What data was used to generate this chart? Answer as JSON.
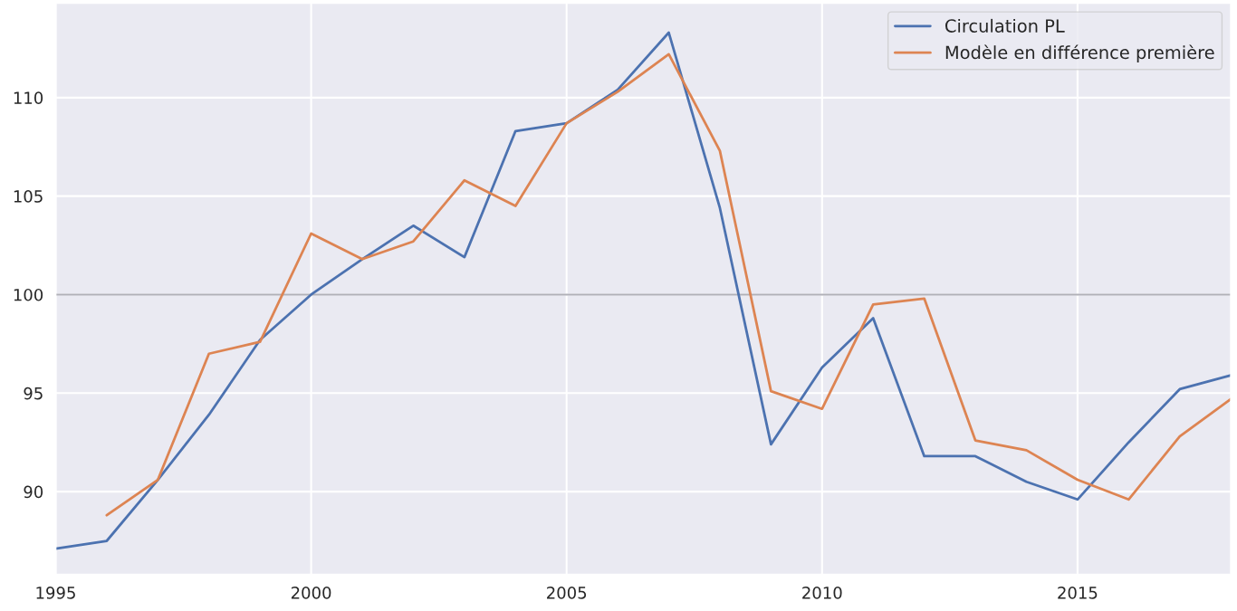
{
  "chart_data": {
    "type": "line",
    "x": [
      1995,
      1996,
      1997,
      1998,
      1999,
      2000,
      2001,
      2002,
      2003,
      2004,
      2005,
      2006,
      2007,
      2008,
      2009,
      2010,
      2011,
      2012,
      2013,
      2014,
      2015,
      2016,
      2017,
      2018
    ],
    "series": [
      {
        "name": "Circulation PL",
        "color": "#4c72b0",
        "values": [
          87.1,
          87.5,
          90.6,
          93.9,
          97.7,
          100.0,
          101.8,
          103.5,
          101.9,
          108.3,
          108.7,
          110.4,
          113.3,
          104.4,
          92.4,
          96.3,
          98.8,
          91.8,
          91.8,
          90.5,
          89.6,
          92.5,
          95.2,
          95.9
        ]
      },
      {
        "name": "Modèle en différence première",
        "color": "#dd8452",
        "values": [
          null,
          88.8,
          90.6,
          97.0,
          97.6,
          103.1,
          101.8,
          102.7,
          105.8,
          104.5,
          108.7,
          110.3,
          112.2,
          107.3,
          95.1,
          94.2,
          99.5,
          99.8,
          92.6,
          92.1,
          90.6,
          89.6,
          92.8,
          94.7
        ]
      }
    ],
    "xlim": [
      1995,
      2018
    ],
    "xticks": [
      1995,
      2000,
      2005,
      2010,
      2015
    ],
    "ylim": [
      85.8,
      114.8
    ],
    "yticks": [
      90,
      95,
      100,
      105,
      110
    ],
    "ref_lines": [
      {
        "axis": "y",
        "value": 100,
        "color": "#b0b0b8"
      }
    ],
    "grid": true,
    "legend": "top right"
  }
}
